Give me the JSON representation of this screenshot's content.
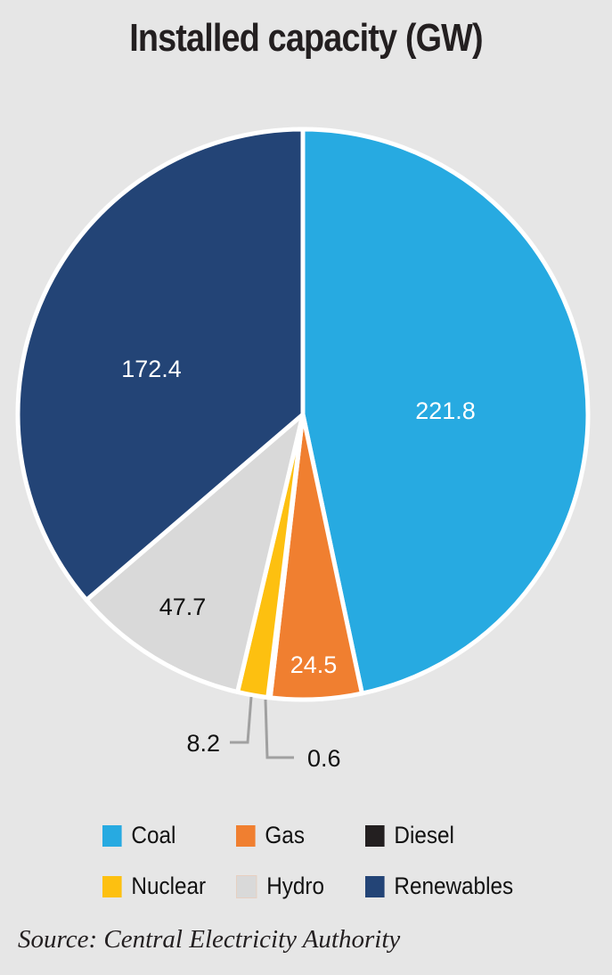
{
  "chart_data": {
    "type": "pie",
    "title": "Installed capacity (GW)",
    "slices": [
      {
        "label": "Coal",
        "value": 221.8,
        "value_label": "221.8",
        "color": "#27aae1"
      },
      {
        "label": "Gas",
        "value": 24.5,
        "value_label": "24.5",
        "color": "#f07f30"
      },
      {
        "label": "Diesel",
        "value": 0.6,
        "value_label": "0.6",
        "color": "#231f20"
      },
      {
        "label": "Nuclear",
        "value": 8.2,
        "value_label": "8.2",
        "color": "#fdc010"
      },
      {
        "label": "Hydro",
        "value": 47.7,
        "value_label": "47.7",
        "color": "#d9d9d9"
      },
      {
        "label": "Renewables",
        "value": 172.4,
        "value_label": "172.4",
        "color": "#234476"
      }
    ],
    "start": "top",
    "direction": "clockwise",
    "legend_position": "bottom",
    "source": "Source: Central  Electricity Authority"
  }
}
